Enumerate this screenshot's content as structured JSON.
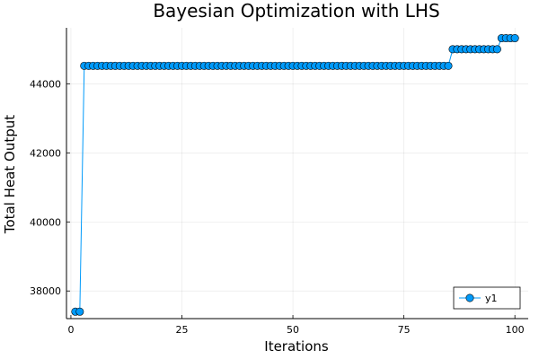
{
  "chart_data": {
    "type": "line",
    "title": "Bayesian Optimization with LHS",
    "xlabel": "Iterations",
    "ylabel": "Total Heat Output",
    "xlim": [
      -1,
      103
    ],
    "ylim": [
      37200,
      45620
    ],
    "xticks": [
      0,
      25,
      50,
      75,
      100
    ],
    "yticks": [
      38000,
      40000,
      42000,
      44000
    ],
    "grid": true,
    "legend_position": "bottom-right",
    "series_color": "#009AFA",
    "series": [
      {
        "name": "y1",
        "marker": "circle",
        "segments": [
          {
            "from": 1,
            "to": 2,
            "value": 37400
          },
          {
            "from": 3,
            "to": 85,
            "value": 44520
          },
          {
            "from": 86,
            "to": 96,
            "value": 45000
          },
          {
            "from": 97,
            "to": 100,
            "value": 45320
          }
        ]
      }
    ]
  }
}
